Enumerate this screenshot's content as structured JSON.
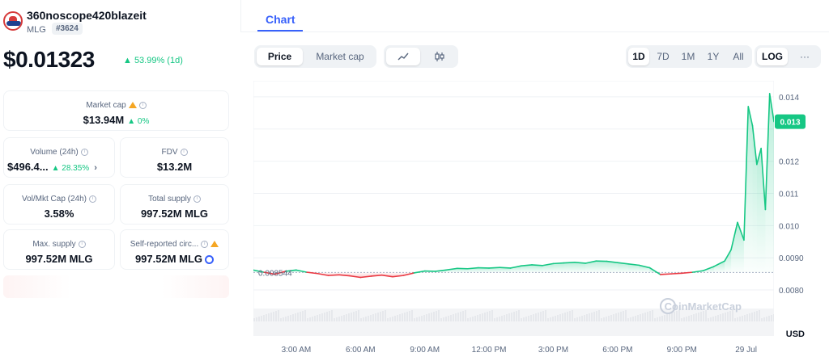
{
  "coin": {
    "name": "360noscope420blazeit",
    "symbol": "MLG",
    "rank": "#3624",
    "price": "$0.01323",
    "change_1d": "▲ 53.99% (1d)"
  },
  "stats": {
    "market_cap": {
      "label": "Market cap",
      "value": "$13.94M",
      "change": "▲ 0%"
    },
    "volume": {
      "label": "Volume (24h)",
      "value": "$496.4...",
      "change": "▲ 28.35%"
    },
    "fdv": {
      "label": "FDV",
      "value": "$13.2M"
    },
    "vol_mkt_cap": {
      "label": "Vol/Mkt Cap (24h)",
      "value": "3.58%"
    },
    "total_supply": {
      "label": "Total supply",
      "value": "997.52M MLG"
    },
    "max_supply": {
      "label": "Max. supply",
      "value": "997.52M MLG"
    },
    "self_reported": {
      "label": "Self-reported circ...",
      "value": "997.52M MLG"
    }
  },
  "tabs": {
    "chart": "Chart"
  },
  "toolbar": {
    "price": "Price",
    "market_cap": "Market cap",
    "ranges": [
      "1D",
      "7D",
      "1M",
      "1Y",
      "All"
    ],
    "active_range": "1D",
    "log": "LOG",
    "more": "···"
  },
  "colors": {
    "accent": "#3861fb",
    "up": "#16c784",
    "down": "#ea3943"
  },
  "chart_data": {
    "type": "line",
    "baseline": 0.008544,
    "baseline_label": "0.008544",
    "current_label": "0.013",
    "currency": "USD",
    "watermark": "CoinMarketCap",
    "ylim": [
      0.0076,
      0.0145
    ],
    "y_ticks": [
      0.014,
      0.013,
      0.012,
      0.011,
      0.01,
      0.009,
      0.008
    ],
    "y_tick_labels": [
      "0.014",
      "",
      "0.012",
      "0.011",
      "0.010",
      "0.0090",
      "0.0080"
    ],
    "x_tick_labels": [
      "3:00 AM",
      "6:00 AM",
      "9:00 AM",
      "12:00 PM",
      "3:00 PM",
      "6:00 PM",
      "9:00 PM",
      "29 Jul"
    ],
    "x_tick_hours": [
      3,
      6,
      9,
      12,
      15,
      18,
      21,
      24
    ],
    "x_range_hours": [
      1.0,
      25.3
    ],
    "x": [
      1.0,
      1.5,
      2.0,
      2.5,
      3.0,
      3.5,
      4.0,
      4.5,
      5.0,
      5.5,
      6.0,
      6.5,
      7.0,
      7.5,
      8.0,
      8.5,
      9.0,
      9.5,
      10.0,
      10.5,
      11.0,
      11.5,
      12.0,
      12.5,
      13.0,
      13.5,
      14.0,
      14.5,
      15.0,
      15.5,
      16.0,
      16.5,
      17.0,
      17.5,
      18.0,
      18.5,
      19.0,
      19.5,
      20.0,
      20.5,
      21.0,
      21.5,
      22.0,
      22.5,
      23.0,
      23.3,
      23.6,
      23.9,
      24.1,
      24.3,
      24.5,
      24.7,
      24.9,
      25.1,
      25.3
    ],
    "y": [
      0.00862,
      0.00855,
      0.00849,
      0.00858,
      0.00862,
      0.00855,
      0.00851,
      0.00845,
      0.00847,
      0.00844,
      0.00839,
      0.00843,
      0.00846,
      0.00841,
      0.00845,
      0.00853,
      0.00859,
      0.00858,
      0.00862,
      0.00867,
      0.00866,
      0.00869,
      0.00868,
      0.0087,
      0.00868,
      0.00875,
      0.00878,
      0.00876,
      0.00882,
      0.00884,
      0.00886,
      0.00883,
      0.0089,
      0.00889,
      0.00885,
      0.00881,
      0.00877,
      0.00869,
      0.00848,
      0.0085,
      0.00852,
      0.00855,
      0.0086,
      0.00873,
      0.0089,
      0.00925,
      0.0101,
      0.00955,
      0.0137,
      0.0131,
      0.0119,
      0.0124,
      0.0105,
      0.0141,
      0.01323
    ]
  }
}
